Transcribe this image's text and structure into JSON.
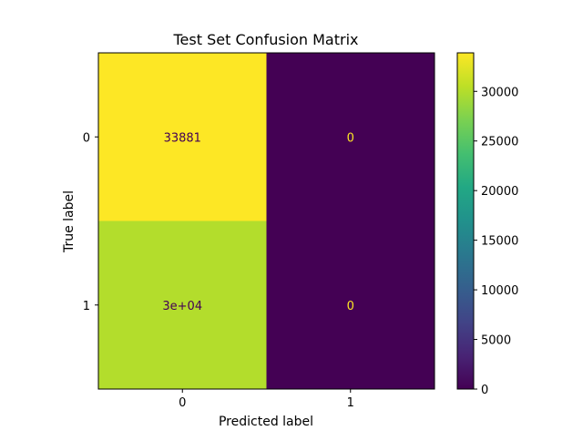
{
  "chart_data": {
    "type": "heatmap",
    "title": "Test Set Confusion Matrix",
    "xlabel": "Predicted label",
    "ylabel": "True label",
    "x_categories": [
      "0",
      "1"
    ],
    "y_categories": [
      "0",
      "1"
    ],
    "values": [
      [
        33881,
        0
      ],
      [
        30000,
        0
      ]
    ],
    "cell_labels": [
      [
        "33881",
        "0"
      ],
      [
        "3e+04",
        "0"
      ]
    ],
    "colormap": "viridis",
    "colorbar": {
      "range": [
        0,
        33881
      ],
      "ticks": [
        0,
        5000,
        10000,
        15000,
        20000,
        25000,
        30000
      ],
      "tick_labels": [
        "0",
        "5000",
        "10000",
        "15000",
        "20000",
        "25000",
        "30000"
      ]
    },
    "label_colors": {
      "on_dark": "#fde725",
      "on_light": "#440154"
    },
    "grid": false
  }
}
